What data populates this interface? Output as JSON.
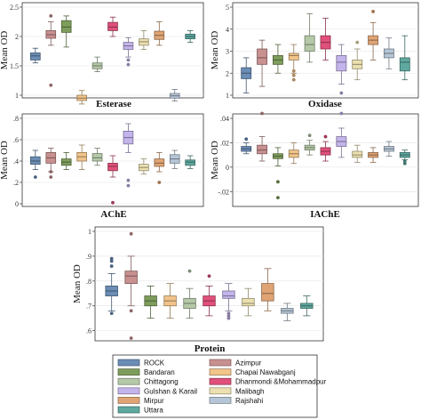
{
  "series_names": [
    "ROCK",
    "Bandaran",
    "Chittagong",
    "Gulshan & Karail",
    "Mirpur",
    "Uttara",
    "Azimpur",
    "Chapai Nawabganj",
    "Dhanmondi &Mohammadpur",
    "Malibagh",
    "Rajshahi"
  ],
  "series_colors": [
    "#6b8db5",
    "#7e9d5c",
    "#b5c9a8",
    "#c4b4ec",
    "#e0a474",
    "#5ea8a0",
    "#c99090",
    "#f2c48a",
    "#e0507a",
    "#ece0b0",
    "#b6c6d6"
  ],
  "chart_data": [
    {
      "type": "box",
      "title": "Esterase",
      "ylabel": "Mean OD",
      "ylim": [
        1,
        2.5
      ],
      "yticks": [
        1,
        1.5,
        2,
        2.5
      ],
      "ytick_labels": [
        "1",
        "1.5",
        "2",
        "2.5"
      ],
      "boxes": [
        {
          "series": "ROCK",
          "min": 1.55,
          "q1": 1.6,
          "median": 1.67,
          "q3": 1.72,
          "max": 1.8,
          "outliers": []
        },
        {
          "series": "Azimpur",
          "min": 1.85,
          "q1": 1.97,
          "median": 2.03,
          "q3": 2.1,
          "max": 2.25,
          "outliers": [
            1.17,
            2.35
          ]
        },
        {
          "series": "Bandaran",
          "min": 1.82,
          "q1": 2.07,
          "median": 2.16,
          "q3": 2.27,
          "max": 2.35,
          "outliers": []
        },
        {
          "series": "Chapai Nawabganj",
          "min": 0.85,
          "q1": 0.91,
          "median": 0.95,
          "q3": 1.0,
          "max": 1.08,
          "outliers": []
        },
        {
          "series": "Chittagong",
          "min": 1.4,
          "q1": 1.45,
          "median": 1.5,
          "q3": 1.55,
          "max": 1.65,
          "outliers": []
        },
        {
          "series": "Dhanmondi &Mohammadpur",
          "min": 2.0,
          "q1": 2.1,
          "median": 2.16,
          "q3": 2.24,
          "max": 2.33,
          "outliers": []
        },
        {
          "series": "Gulshan & Karail",
          "min": 1.65,
          "q1": 1.78,
          "median": 1.84,
          "q3": 1.9,
          "max": 1.98,
          "outliers": [
            1.52,
            1.6
          ]
        },
        {
          "series": "Malibagh",
          "min": 1.78,
          "q1": 1.85,
          "median": 1.91,
          "q3": 1.96,
          "max": 2.1,
          "outliers": []
        },
        {
          "series": "Mirpur",
          "min": 1.85,
          "q1": 1.95,
          "median": 2.02,
          "q3": 2.09,
          "max": 2.25,
          "outliers": []
        },
        {
          "series": "Rajshahi",
          "min": 0.9,
          "q1": 0.95,
          "median": 0.99,
          "q3": 1.03,
          "max": 1.1,
          "outliers": []
        },
        {
          "series": "Uttara",
          "min": 1.9,
          "q1": 1.96,
          "median": 2.0,
          "q3": 2.04,
          "max": 2.1,
          "outliers": []
        }
      ]
    },
    {
      "type": "box",
      "title": "Oxidase",
      "ylabel": "Mean OD",
      "ylim": [
        1,
        5
      ],
      "yticks": [
        1,
        2,
        3,
        4,
        5
      ],
      "ytick_labels": [
        "1",
        "2",
        "3",
        "4",
        "5"
      ],
      "boxes": [
        {
          "series": "ROCK",
          "min": 1.1,
          "q1": 1.75,
          "median": 2.0,
          "q3": 2.25,
          "max": 2.7,
          "outliers": []
        },
        {
          "series": "Azimpur",
          "min": 1.4,
          "q1": 2.4,
          "median": 2.7,
          "q3": 3.1,
          "max": 3.5,
          "outliers": []
        },
        {
          "series": "Bandaran",
          "min": 2.0,
          "q1": 2.4,
          "median": 2.6,
          "q3": 2.8,
          "max": 3.3,
          "outliers": []
        },
        {
          "series": "Chapai Nawabganj",
          "min": 2.0,
          "q1": 2.6,
          "median": 2.8,
          "q3": 2.9,
          "max": 3.3,
          "outliers": [
            1.7,
            1.9,
            2.1
          ]
        },
        {
          "series": "Chittagong",
          "min": 2.5,
          "q1": 3.0,
          "median": 3.3,
          "q3": 3.7,
          "max": 4.7,
          "outliers": []
        },
        {
          "series": "Dhanmondi &Mohammadpur",
          "min": 2.6,
          "q1": 3.1,
          "median": 3.4,
          "q3": 3.7,
          "max": 4.5,
          "outliers": []
        },
        {
          "series": "Gulshan & Karail",
          "min": 1.5,
          "q1": 2.1,
          "median": 2.5,
          "q3": 2.8,
          "max": 3.3,
          "outliers": [
            1.1
          ]
        },
        {
          "series": "Malibagh",
          "min": 1.7,
          "q1": 2.2,
          "median": 2.4,
          "q3": 2.6,
          "max": 3.1,
          "outliers": [
            3.4
          ]
        },
        {
          "series": "Mirpur",
          "min": 2.6,
          "q1": 3.3,
          "median": 3.5,
          "q3": 3.7,
          "max": 4.3,
          "outliers": [
            4.8
          ]
        },
        {
          "series": "Rajshahi",
          "min": 2.2,
          "q1": 2.7,
          "median": 2.9,
          "q3": 3.1,
          "max": 3.6,
          "outliers": []
        },
        {
          "series": "Uttara",
          "min": 1.7,
          "q1": 2.1,
          "median": 2.5,
          "q3": 2.7,
          "max": 3.7,
          "outliers": []
        }
      ]
    },
    {
      "type": "box",
      "title": "AChE",
      "ylabel": "Mean OD",
      "ylim": [
        0,
        0.8
      ],
      "yticks": [
        0,
        0.2,
        0.4,
        0.6,
        0.8
      ],
      "ytick_labels": [
        "0",
        ".2",
        ".4",
        ".6",
        ".8"
      ],
      "boxes": [
        {
          "series": "ROCK",
          "min": 0.32,
          "q1": 0.37,
          "median": 0.4,
          "q3": 0.44,
          "max": 0.5,
          "outliers": [
            0.25
          ]
        },
        {
          "series": "Azimpur",
          "min": 0.3,
          "q1": 0.38,
          "median": 0.43,
          "q3": 0.48,
          "max": 0.52,
          "outliers": [
            0.25,
            0.3
          ]
        },
        {
          "series": "Bandaran",
          "min": 0.32,
          "q1": 0.36,
          "median": 0.39,
          "q3": 0.42,
          "max": 0.48,
          "outliers": []
        },
        {
          "series": "Chapai Nawabganj",
          "min": 0.32,
          "q1": 0.4,
          "median": 0.44,
          "q3": 0.48,
          "max": 0.55,
          "outliers": []
        },
        {
          "series": "Chittagong",
          "min": 0.36,
          "q1": 0.4,
          "median": 0.43,
          "q3": 0.47,
          "max": 0.52,
          "outliers": []
        },
        {
          "series": "Dhanmondi &Mohammadpur",
          "min": 0.25,
          "q1": 0.31,
          "median": 0.35,
          "q3": 0.38,
          "max": 0.45,
          "outliers": [
            0.01
          ]
        },
        {
          "series": "Gulshan & Karail",
          "min": 0.48,
          "q1": 0.56,
          "median": 0.62,
          "q3": 0.68,
          "max": 0.75,
          "outliers": [
            0.17,
            0.22
          ]
        },
        {
          "series": "Malibagh",
          "min": 0.28,
          "q1": 0.31,
          "median": 0.34,
          "q3": 0.37,
          "max": 0.42,
          "outliers": []
        },
        {
          "series": "Mirpur",
          "min": 0.3,
          "q1": 0.35,
          "median": 0.38,
          "q3": 0.42,
          "max": 0.48,
          "outliers": [
            0.2
          ]
        },
        {
          "series": "Rajshahi",
          "min": 0.33,
          "q1": 0.38,
          "median": 0.42,
          "q3": 0.46,
          "max": 0.5,
          "outliers": []
        },
        {
          "series": "Uttara",
          "min": 0.33,
          "q1": 0.36,
          "median": 0.39,
          "q3": 0.41,
          "max": 0.45,
          "outliers": []
        }
      ]
    },
    {
      "type": "box",
      "title": "IAChE",
      "ylabel": "Mean OD",
      "ylim": [
        -0.03,
        0.04
      ],
      "yticks": [
        -0.02,
        0,
        0.02,
        0.04
      ],
      "ytick_labels": [
        "-.02",
        "0",
        ".02",
        ".04"
      ],
      "boxes": [
        {
          "series": "ROCK",
          "min": 0.011,
          "q1": 0.013,
          "median": 0.015,
          "q3": 0.017,
          "max": 0.02,
          "outliers": [
            0.023
          ]
        },
        {
          "series": "Azimpur",
          "min": 0.005,
          "q1": 0.011,
          "median": 0.014,
          "q3": 0.018,
          "max": 0.025,
          "outliers": [
            0.044
          ]
        },
        {
          "series": "Bandaran",
          "min": 0.001,
          "q1": 0.007,
          "median": 0.009,
          "q3": 0.011,
          "max": 0.016,
          "outliers": [
            -0.012,
            -0.025
          ]
        },
        {
          "series": "Chapai Nawabganj",
          "min": 0.003,
          "q1": 0.008,
          "median": 0.011,
          "q3": 0.014,
          "max": 0.02,
          "outliers": []
        },
        {
          "series": "Chittagong",
          "min": 0.01,
          "q1": 0.014,
          "median": 0.016,
          "q3": 0.018,
          "max": 0.022,
          "outliers": [
            0.026
          ]
        },
        {
          "series": "Dhanmondi &Mohammadpur",
          "min": 0.005,
          "q1": 0.01,
          "median": 0.013,
          "q3": 0.016,
          "max": 0.021,
          "outliers": [
            0.025
          ]
        },
        {
          "series": "Gulshan & Karail",
          "min": 0.008,
          "q1": 0.017,
          "median": 0.021,
          "q3": 0.025,
          "max": 0.032,
          "outliers": [
            0.044
          ]
        },
        {
          "series": "Malibagh",
          "min": 0.004,
          "q1": 0.008,
          "median": 0.01,
          "q3": 0.013,
          "max": 0.018,
          "outliers": []
        },
        {
          "series": "Mirpur",
          "min": 0.004,
          "q1": 0.008,
          "median": 0.01,
          "q3": 0.012,
          "max": 0.016,
          "outliers": []
        },
        {
          "series": "Rajshahi",
          "min": 0.009,
          "q1": 0.013,
          "median": 0.015,
          "q3": 0.017,
          "max": 0.021,
          "outliers": []
        },
        {
          "series": "Uttara",
          "min": 0.006,
          "q1": 0.008,
          "median": 0.01,
          "q3": 0.012,
          "max": 0.014,
          "outliers": [
            0.003,
            0.005
          ]
        }
      ]
    },
    {
      "type": "box",
      "title": "Protein",
      "ylabel": "Mean OD",
      "ylim": [
        0.57,
        1.0
      ],
      "yticks": [
        0.6,
        0.7,
        0.8,
        0.9,
        1.0
      ],
      "ytick_labels": [
        ".6",
        ".7",
        ".8",
        ".9",
        "1"
      ],
      "boxes": [
        {
          "series": "ROCK",
          "min": 0.68,
          "q1": 0.74,
          "median": 0.76,
          "q3": 0.78,
          "max": 0.83,
          "outliers": [
            0.86,
            0.88,
            0.89,
            0.67
          ]
        },
        {
          "series": "Azimpur",
          "min": 0.7,
          "q1": 0.79,
          "median": 0.82,
          "q3": 0.84,
          "max": 0.9,
          "outliers": [
            0.99,
            0.68,
            0.57
          ]
        },
        {
          "series": "Bandaran",
          "min": 0.65,
          "q1": 0.7,
          "median": 0.72,
          "q3": 0.74,
          "max": 0.78,
          "outliers": []
        },
        {
          "series": "Chapai Nawabganj",
          "min": 0.65,
          "q1": 0.7,
          "median": 0.72,
          "q3": 0.74,
          "max": 0.79,
          "outliers": []
        },
        {
          "series": "Chittagong",
          "min": 0.65,
          "q1": 0.69,
          "median": 0.71,
          "q3": 0.73,
          "max": 0.77,
          "outliers": [
            0.84
          ]
        },
        {
          "series": "Dhanmondi &Mohammadpur",
          "min": 0.66,
          "q1": 0.7,
          "median": 0.72,
          "q3": 0.74,
          "max": 0.78,
          "outliers": [
            0.82
          ]
        },
        {
          "series": "Gulshan & Karail",
          "min": 0.68,
          "q1": 0.73,
          "median": 0.74,
          "q3": 0.76,
          "max": 0.79,
          "outliers": [
            0.65,
            0.66,
            0.67
          ]
        },
        {
          "series": "Malibagh",
          "min": 0.66,
          "q1": 0.7,
          "median": 0.71,
          "q3": 0.73,
          "max": 0.77,
          "outliers": []
        },
        {
          "series": "Mirpur",
          "min": 0.68,
          "q1": 0.72,
          "median": 0.75,
          "q3": 0.79,
          "max": 0.85,
          "outliers": []
        },
        {
          "series": "Rajshahi",
          "min": 0.64,
          "q1": 0.67,
          "median": 0.68,
          "q3": 0.69,
          "max": 0.71,
          "outliers": []
        },
        {
          "series": "Uttara",
          "min": 0.66,
          "q1": 0.69,
          "median": 0.7,
          "q3": 0.71,
          "max": 0.74,
          "outliers": []
        }
      ]
    }
  ],
  "legend": {
    "columns": [
      [
        "ROCK",
        "Bandaran",
        "Chittagong",
        "Gulshan & Karail",
        "Mirpur",
        "Uttara"
      ],
      [
        "Azimpur",
        "Chapai Nawabganj",
        "Dhanmondi &Mohammadpur",
        "Malibagh",
        "Rajshahi"
      ]
    ]
  }
}
